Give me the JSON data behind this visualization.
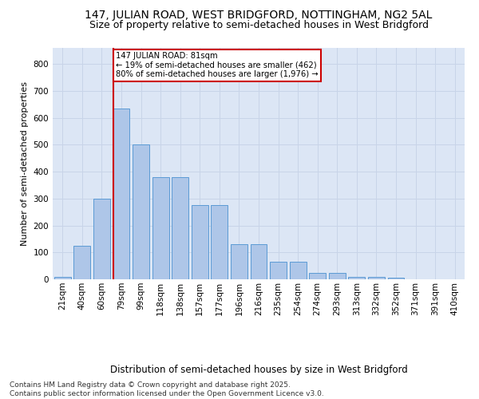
{
  "title1": "147, JULIAN ROAD, WEST BRIDGFORD, NOTTINGHAM, NG2 5AL",
  "title2": "Size of property relative to semi-detached houses in West Bridgford",
  "xlabel": "Distribution of semi-detached houses by size in West Bridgford",
  "ylabel": "Number of semi-detached properties",
  "categories": [
    "21sqm",
    "40sqm",
    "60sqm",
    "79sqm",
    "99sqm",
    "118sqm",
    "138sqm",
    "157sqm",
    "177sqm",
    "196sqm",
    "216sqm",
    "235sqm",
    "254sqm",
    "274sqm",
    "293sqm",
    "313sqm",
    "332sqm",
    "352sqm",
    "371sqm",
    "391sqm",
    "410sqm"
  ],
  "values": [
    10,
    125,
    300,
    635,
    500,
    380,
    380,
    275,
    275,
    130,
    130,
    65,
    65,
    25,
    25,
    10,
    10,
    5,
    0,
    0,
    0
  ],
  "bar_color": "#aec6e8",
  "bar_edge_color": "#5b9bd5",
  "grid_color": "#c8d4e8",
  "background_color": "#dce6f5",
  "vline_color": "#cc0000",
  "annotation_text": "147 JULIAN ROAD: 81sqm\n← 19% of semi-detached houses are smaller (462)\n80% of semi-detached houses are larger (1,976) →",
  "annotation_box_color": "#cc0000",
  "ylim": [
    0,
    860
  ],
  "yticks": [
    0,
    100,
    200,
    300,
    400,
    500,
    600,
    700,
    800
  ],
  "footnote": "Contains HM Land Registry data © Crown copyright and database right 2025.\nContains public sector information licensed under the Open Government Licence v3.0.",
  "title1_fontsize": 10,
  "title2_fontsize": 9,
  "xlabel_fontsize": 8.5,
  "ylabel_fontsize": 8,
  "tick_fontsize": 7.5,
  "footnote_fontsize": 6.5,
  "vline_bar_index": 3
}
